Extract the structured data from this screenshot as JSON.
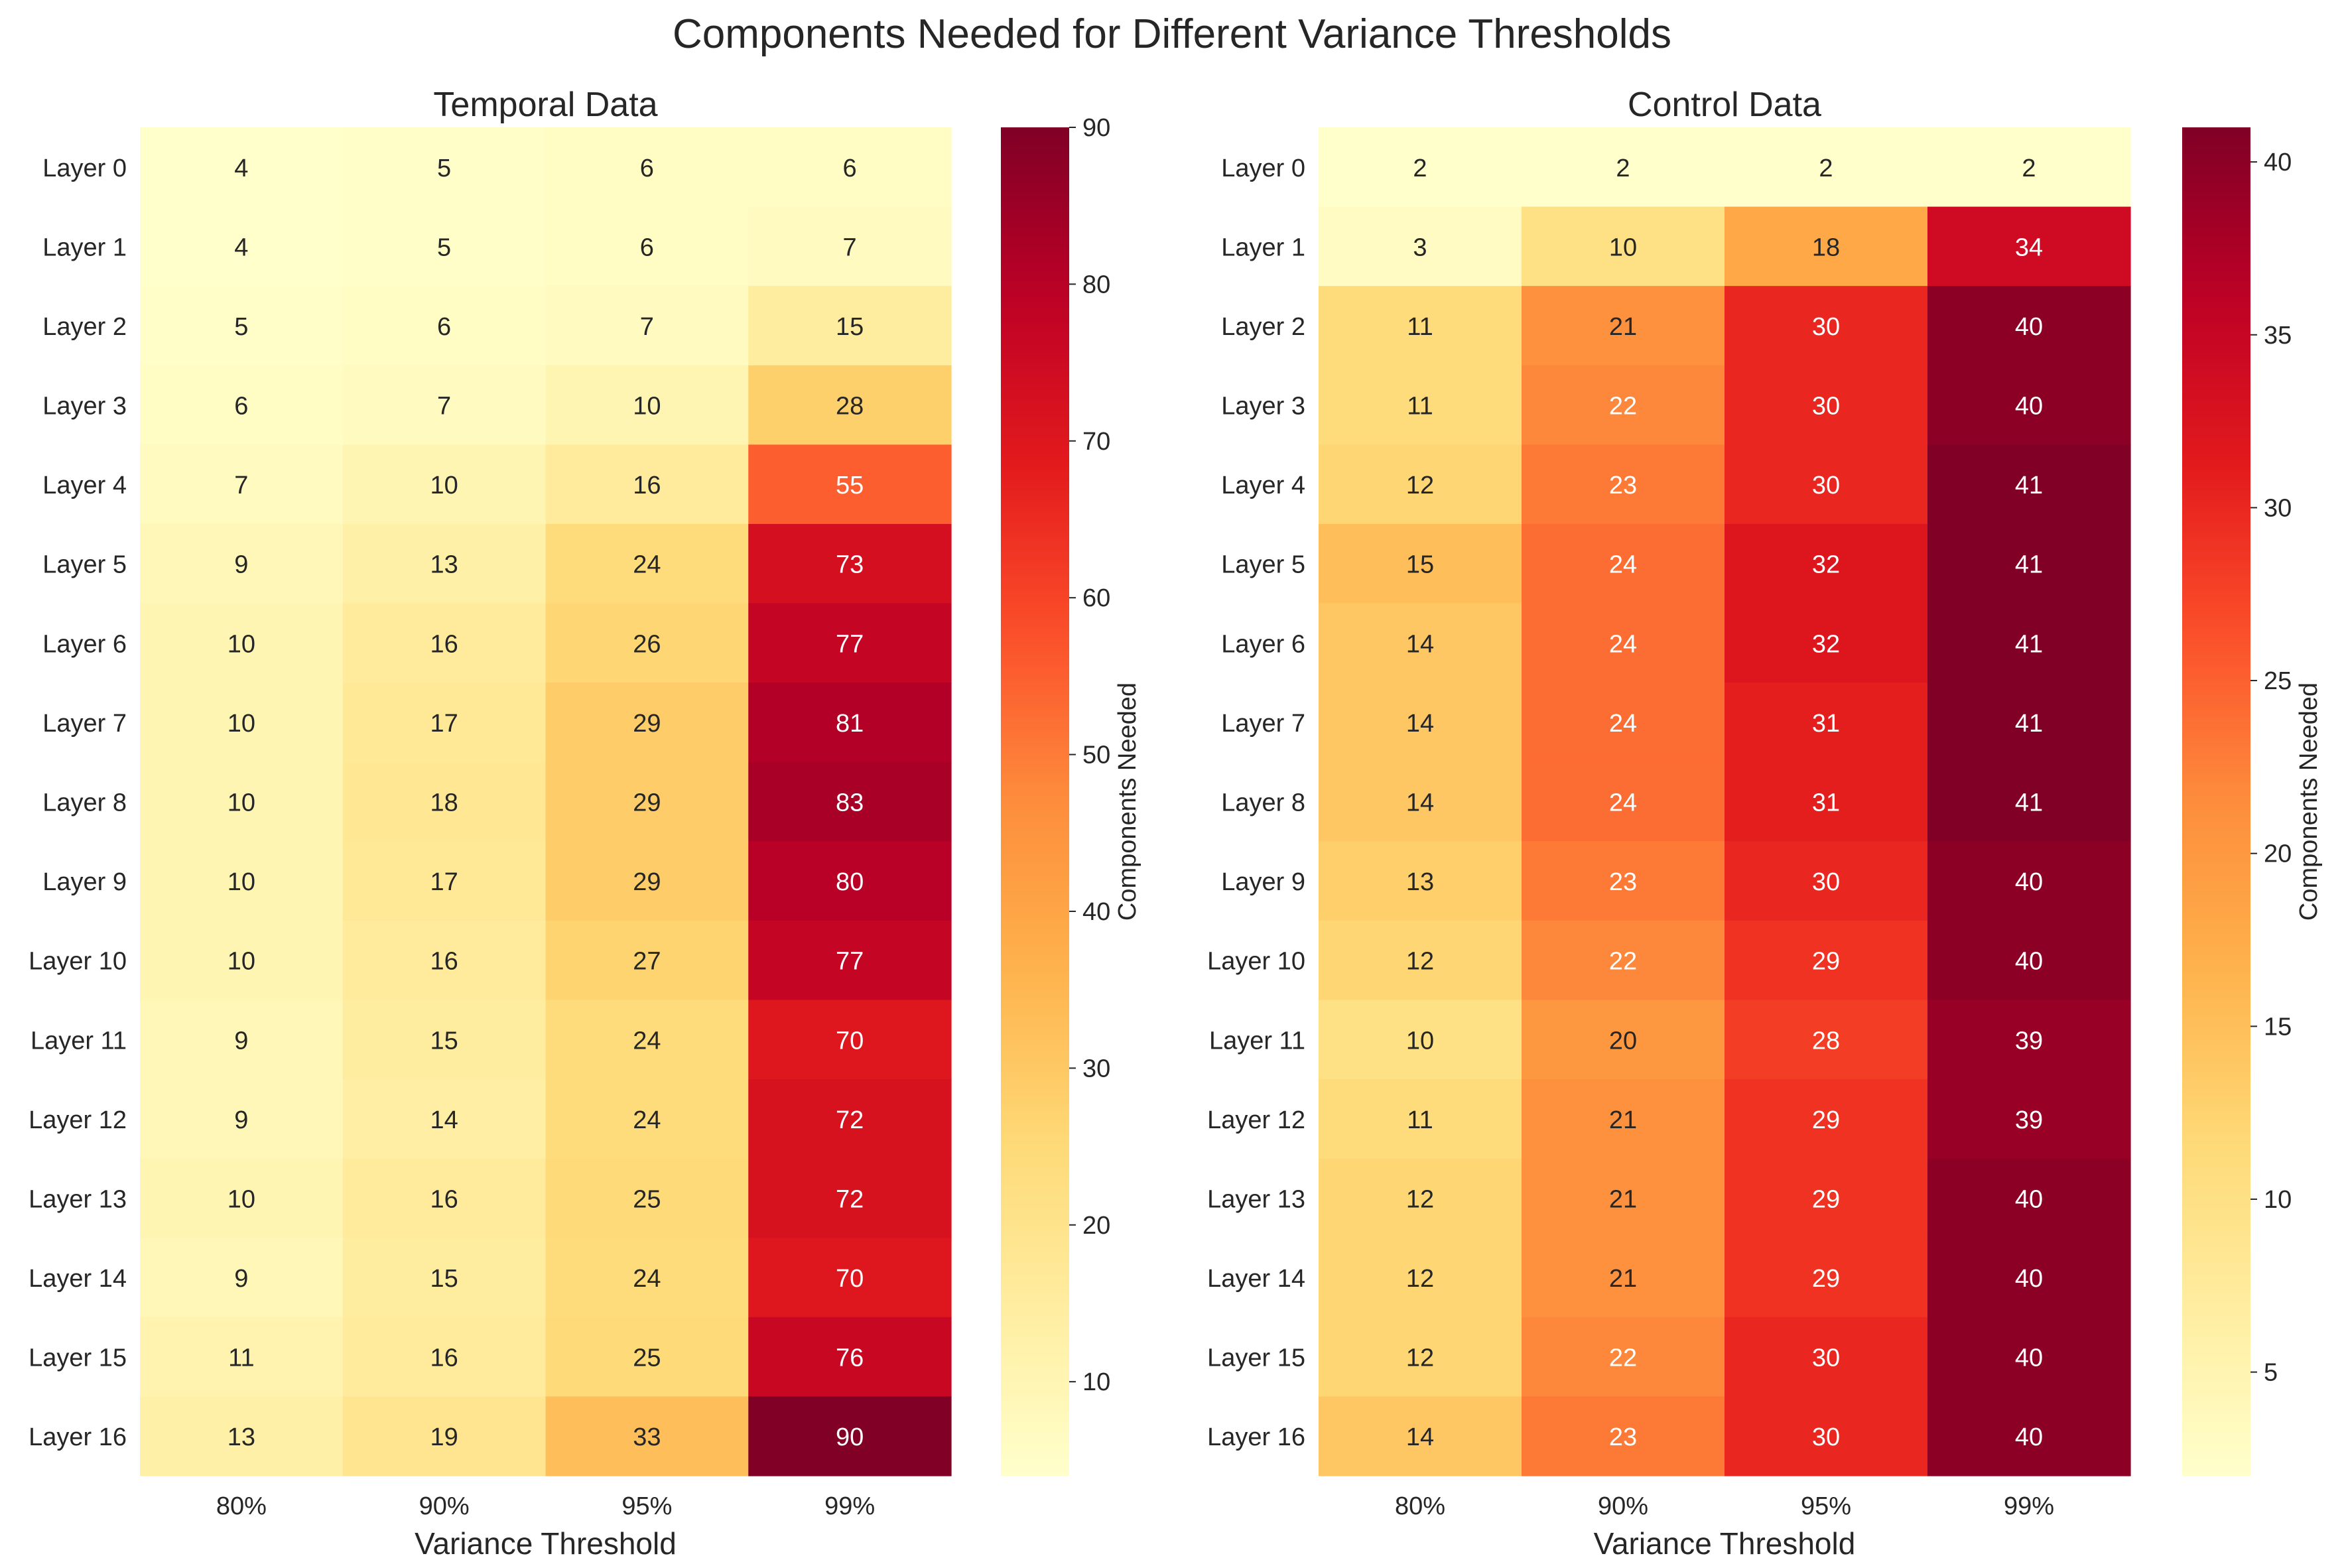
{
  "figure": {
    "title": "Components Needed for Different Variance Thresholds"
  },
  "chart_data": [
    {
      "type": "heatmap",
      "title": "Temporal Data",
      "xlabel": "Variance Threshold",
      "ylabel": "",
      "x_categories": [
        "80%",
        "90%",
        "95%",
        "99%"
      ],
      "y_categories": [
        "Layer 0",
        "Layer 1",
        "Layer 2",
        "Layer 3",
        "Layer 4",
        "Layer 5",
        "Layer 6",
        "Layer 7",
        "Layer 8",
        "Layer 9",
        "Layer 10",
        "Layer 11",
        "Layer 12",
        "Layer 13",
        "Layer 14",
        "Layer 15",
        "Layer 16"
      ],
      "values": [
        [
          4,
          5,
          6,
          6
        ],
        [
          4,
          5,
          6,
          7
        ],
        [
          5,
          6,
          7,
          15
        ],
        [
          6,
          7,
          10,
          28
        ],
        [
          7,
          10,
          16,
          55
        ],
        [
          9,
          13,
          24,
          73
        ],
        [
          10,
          16,
          26,
          77
        ],
        [
          10,
          17,
          29,
          81
        ],
        [
          10,
          18,
          29,
          83
        ],
        [
          10,
          17,
          29,
          80
        ],
        [
          10,
          16,
          27,
          77
        ],
        [
          9,
          15,
          24,
          70
        ],
        [
          9,
          14,
          24,
          72
        ],
        [
          10,
          16,
          25,
          72
        ],
        [
          9,
          15,
          24,
          70
        ],
        [
          11,
          16,
          25,
          76
        ],
        [
          13,
          19,
          33,
          90
        ]
      ],
      "colorbar": {
        "label": "Components Needed",
        "range": [
          4,
          90
        ],
        "ticks": [
          10,
          20,
          30,
          40,
          50,
          60,
          70,
          80,
          90
        ]
      },
      "colormap": "YlOrRd",
      "annotations": true
    },
    {
      "type": "heatmap",
      "title": "Control Data",
      "xlabel": "Variance Threshold",
      "ylabel": "",
      "x_categories": [
        "80%",
        "90%",
        "95%",
        "99%"
      ],
      "y_categories": [
        "Layer 0",
        "Layer 1",
        "Layer 2",
        "Layer 3",
        "Layer 4",
        "Layer 5",
        "Layer 6",
        "Layer 7",
        "Layer 8",
        "Layer 9",
        "Layer 10",
        "Layer 11",
        "Layer 12",
        "Layer 13",
        "Layer 14",
        "Layer 15",
        "Layer 16"
      ],
      "values": [
        [
          2,
          2,
          2,
          2
        ],
        [
          3,
          10,
          18,
          34
        ],
        [
          11,
          21,
          30,
          40
        ],
        [
          11,
          22,
          30,
          40
        ],
        [
          12,
          23,
          30,
          41
        ],
        [
          15,
          24,
          32,
          41
        ],
        [
          14,
          24,
          32,
          41
        ],
        [
          14,
          24,
          31,
          41
        ],
        [
          14,
          24,
          31,
          41
        ],
        [
          13,
          23,
          30,
          40
        ],
        [
          12,
          22,
          29,
          40
        ],
        [
          10,
          20,
          28,
          39
        ],
        [
          11,
          21,
          29,
          39
        ],
        [
          12,
          21,
          29,
          40
        ],
        [
          12,
          21,
          29,
          40
        ],
        [
          12,
          22,
          30,
          40
        ],
        [
          14,
          23,
          30,
          40
        ]
      ],
      "colorbar": {
        "label": "Components Needed",
        "range": [
          2,
          41
        ],
        "ticks": [
          5,
          10,
          15,
          20,
          25,
          30,
          35,
          40
        ]
      },
      "colormap": "YlOrRd",
      "annotations": true
    }
  ]
}
